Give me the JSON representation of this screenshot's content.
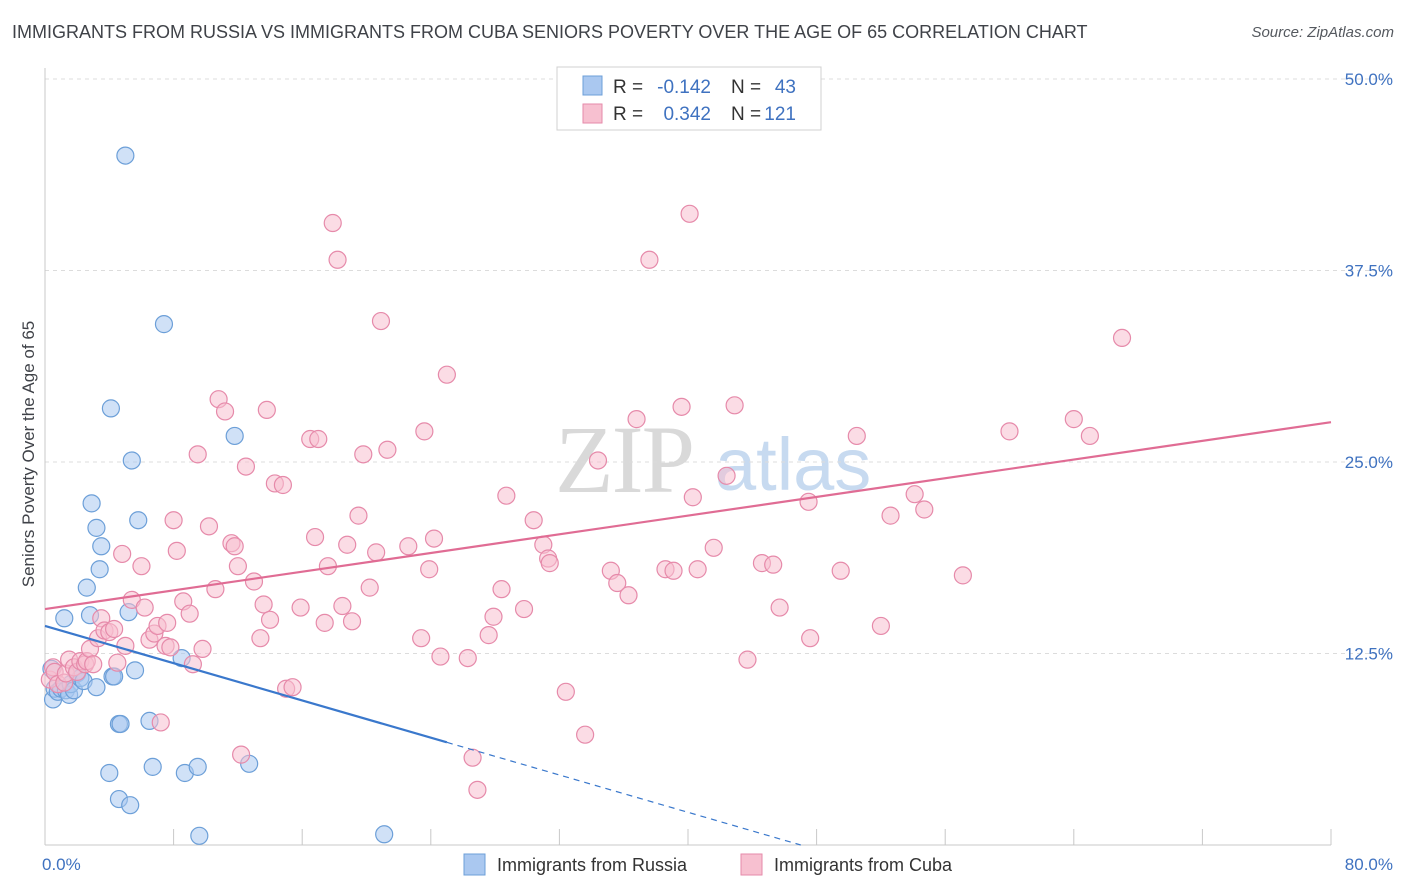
{
  "title": "IMMIGRANTS FROM RUSSIA VS IMMIGRANTS FROM CUBA SENIORS POVERTY OVER THE AGE OF 65 CORRELATION CHART",
  "source": "Source: ZipAtlas.com",
  "watermark": {
    "zip": "ZIP",
    "atlas": "atlas"
  },
  "legend": {
    "russia": {
      "r_label": "R =",
      "r_value": "-0.142",
      "n_label": "N =",
      "n_value": "43"
    },
    "cuba": {
      "r_label": "R =",
      "r_value": "0.342",
      "n_label": "N =",
      "n_value": "121"
    }
  },
  "colors": {
    "russia_fill": "#aac8f0",
    "russia_stroke": "#6c9fd8",
    "russia_line": "#3a78cc",
    "cuba_fill": "#f7c0d0",
    "cuba_stroke": "#e68aaa",
    "cuba_line": "#e06c94",
    "grid": "#dcdcdc",
    "axis_label": "#3f72c0"
  },
  "chart_data": {
    "type": "scatter",
    "xlabel": "",
    "ylabel": "Seniors Poverty Over the Age of 65",
    "xlim": [
      0,
      80
    ],
    "ylim": [
      0,
      50
    ],
    "x_tick_labels": [
      "0.0%",
      "80.0%"
    ],
    "y_ticks": [
      12.5,
      25.0,
      37.5,
      50.0
    ],
    "y_tick_labels": [
      "12.5%",
      "25.0%",
      "37.5%",
      "50.0%"
    ],
    "grid": "horizontal dashed",
    "legend_position": "top-center",
    "series": [
      {
        "name": "Immigrants from Russia",
        "r": -0.142,
        "n": 43,
        "trend": {
          "solid": [
            [
              0,
              14.3
            ],
            [
              25,
              6.7
            ]
          ],
          "dashed": [
            [
              25,
              6.7
            ],
            [
              48,
              -0.3
            ]
          ]
        },
        "points": [
          [
            0.4,
            11.5
          ],
          [
            0.5,
            9.5
          ],
          [
            0.6,
            10.2
          ],
          [
            0.8,
            10.0
          ],
          [
            1.0,
            10.2
          ],
          [
            1.2,
            14.8
          ],
          [
            1.3,
            10.1
          ],
          [
            1.5,
            9.8
          ],
          [
            1.6,
            10.5
          ],
          [
            1.8,
            10.1
          ],
          [
            2.0,
            11.2
          ],
          [
            2.2,
            10.9
          ],
          [
            2.4,
            10.7
          ],
          [
            2.6,
            16.8
          ],
          [
            2.8,
            15.0
          ],
          [
            2.9,
            22.3
          ],
          [
            3.2,
            20.7
          ],
          [
            3.4,
            18.0
          ],
          [
            3.5,
            19.5
          ],
          [
            4.0,
            4.7
          ],
          [
            4.1,
            28.5
          ],
          [
            4.2,
            11.0
          ],
          [
            4.3,
            11.0
          ],
          [
            4.6,
            7.9
          ],
          [
            4.6,
            3.0
          ],
          [
            4.7,
            7.9
          ],
          [
            5.0,
            45.0
          ],
          [
            5.2,
            15.2
          ],
          [
            5.3,
            2.6
          ],
          [
            5.4,
            25.1
          ],
          [
            5.6,
            11.4
          ],
          [
            5.8,
            21.2
          ],
          [
            6.5,
            8.1
          ],
          [
            6.7,
            5.1
          ],
          [
            7.4,
            34.0
          ],
          [
            8.5,
            12.2
          ],
          [
            8.7,
            4.7
          ],
          [
            9.5,
            5.1
          ],
          [
            9.6,
            0.6
          ],
          [
            11.8,
            26.7
          ],
          [
            12.7,
            5.3
          ],
          [
            21.1,
            0.7
          ],
          [
            3.2,
            10.3
          ]
        ]
      },
      {
        "name": "Immigrants from Cuba",
        "r": 0.342,
        "n": 121,
        "trend": {
          "solid": [
            [
              0,
              15.4
            ],
            [
              80,
              27.6
            ]
          ]
        },
        "points": [
          [
            0.3,
            10.8
          ],
          [
            0.5,
            11.6
          ],
          [
            0.6,
            11.3
          ],
          [
            0.8,
            10.5
          ],
          [
            1.2,
            10.6
          ],
          [
            1.3,
            11.2
          ],
          [
            1.5,
            12.1
          ],
          [
            1.8,
            11.6
          ],
          [
            2.0,
            11.3
          ],
          [
            2.2,
            12.0
          ],
          [
            2.5,
            11.8
          ],
          [
            2.6,
            12.0
          ],
          [
            2.8,
            12.8
          ],
          [
            3.0,
            11.8
          ],
          [
            3.3,
            13.5
          ],
          [
            3.5,
            14.8
          ],
          [
            3.7,
            14.0
          ],
          [
            4.0,
            13.9
          ],
          [
            4.3,
            14.1
          ],
          [
            4.5,
            11.9
          ],
          [
            4.8,
            19.0
          ],
          [
            5.0,
            13.0
          ],
          [
            5.4,
            16.0
          ],
          [
            6.0,
            18.2
          ],
          [
            6.2,
            15.5
          ],
          [
            6.5,
            13.4
          ],
          [
            6.8,
            13.8
          ],
          [
            7.0,
            14.3
          ],
          [
            7.2,
            8.0
          ],
          [
            7.5,
            13.0
          ],
          [
            7.6,
            14.5
          ],
          [
            7.8,
            12.9
          ],
          [
            8.0,
            21.2
          ],
          [
            8.2,
            19.2
          ],
          [
            8.6,
            15.9
          ],
          [
            9.0,
            15.1
          ],
          [
            9.2,
            11.8
          ],
          [
            9.5,
            25.5
          ],
          [
            9.8,
            12.8
          ],
          [
            10.2,
            20.8
          ],
          [
            10.6,
            16.7
          ],
          [
            10.8,
            29.1
          ],
          [
            11.2,
            28.3
          ],
          [
            11.6,
            19.7
          ],
          [
            11.8,
            19.5
          ],
          [
            12.0,
            18.2
          ],
          [
            12.2,
            5.9
          ],
          [
            12.5,
            24.7
          ],
          [
            13.0,
            17.2
          ],
          [
            13.4,
            13.5
          ],
          [
            13.6,
            15.7
          ],
          [
            13.8,
            28.4
          ],
          [
            14.0,
            14.7
          ],
          [
            14.3,
            23.6
          ],
          [
            14.8,
            23.5
          ],
          [
            15.0,
            10.2
          ],
          [
            15.4,
            10.3
          ],
          [
            15.9,
            15.5
          ],
          [
            16.5,
            26.5
          ],
          [
            16.8,
            20.1
          ],
          [
            17.0,
            26.5
          ],
          [
            17.4,
            14.5
          ],
          [
            17.6,
            18.2
          ],
          [
            17.9,
            40.6
          ],
          [
            18.2,
            38.2
          ],
          [
            18.5,
            15.6
          ],
          [
            18.8,
            19.6
          ],
          [
            19.1,
            14.6
          ],
          [
            19.5,
            21.5
          ],
          [
            19.8,
            25.5
          ],
          [
            20.2,
            16.8
          ],
          [
            20.6,
            19.1
          ],
          [
            20.9,
            34.2
          ],
          [
            21.3,
            25.8
          ],
          [
            22.6,
            19.5
          ],
          [
            23.4,
            13.5
          ],
          [
            23.6,
            27.0
          ],
          [
            23.9,
            18.0
          ],
          [
            24.2,
            20.0
          ],
          [
            24.6,
            12.3
          ],
          [
            25.0,
            30.7
          ],
          [
            26.3,
            12.2
          ],
          [
            26.6,
            5.7
          ],
          [
            26.9,
            3.6
          ],
          [
            27.6,
            13.7
          ],
          [
            27.9,
            14.9
          ],
          [
            28.4,
            16.7
          ],
          [
            28.7,
            22.8
          ],
          [
            29.8,
            15.4
          ],
          [
            30.4,
            21.2
          ],
          [
            31.0,
            19.6
          ],
          [
            31.3,
            18.7
          ],
          [
            31.4,
            18.4
          ],
          [
            32.4,
            10.0
          ],
          [
            33.6,
            7.2
          ],
          [
            34.4,
            25.1
          ],
          [
            35.2,
            17.9
          ],
          [
            35.6,
            17.1
          ],
          [
            36.3,
            16.3
          ],
          [
            36.8,
            27.8
          ],
          [
            37.6,
            38.2
          ],
          [
            38.6,
            18.0
          ],
          [
            39.1,
            17.9
          ],
          [
            39.6,
            28.6
          ],
          [
            40.1,
            41.2
          ],
          [
            40.3,
            22.7
          ],
          [
            40.6,
            18.0
          ],
          [
            41.6,
            19.4
          ],
          [
            42.4,
            24.1
          ],
          [
            42.9,
            28.7
          ],
          [
            43.7,
            12.1
          ],
          [
            44.6,
            18.4
          ],
          [
            45.3,
            18.3
          ],
          [
            45.7,
            15.5
          ],
          [
            47.5,
            22.4
          ],
          [
            47.6,
            13.5
          ],
          [
            49.5,
            17.9
          ],
          [
            50.5,
            26.7
          ],
          [
            52.0,
            14.3
          ],
          [
            52.6,
            21.5
          ],
          [
            54.1,
            22.9
          ],
          [
            54.7,
            21.9
          ],
          [
            57.1,
            17.6
          ],
          [
            60.0,
            27.0
          ],
          [
            64.0,
            27.8
          ],
          [
            65.0,
            26.7
          ],
          [
            67.0,
            33.1
          ]
        ]
      }
    ]
  },
  "bottom_legend": {
    "russia": "Immigrants from Russia",
    "cuba": "Immigrants from Cuba"
  }
}
